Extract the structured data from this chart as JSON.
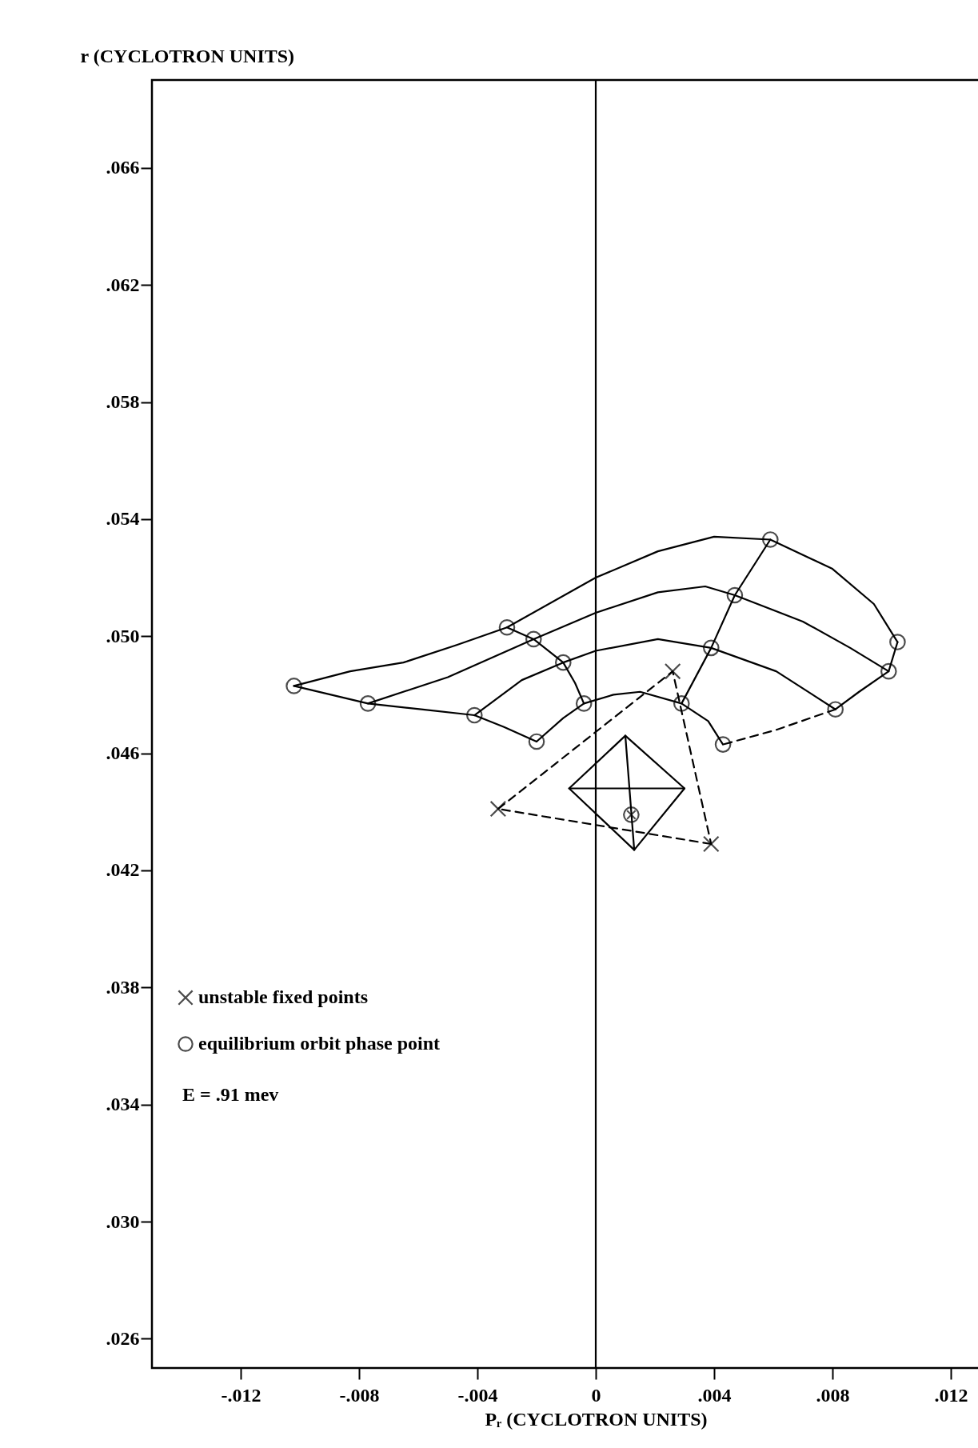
{
  "chart_data": {
    "type": "line",
    "xlabel": "Pᵣ (CYCLOTRON UNITS)",
    "ylabel": "r (CYCLOTRON UNITS)",
    "xlim": [
      -0.015,
      0.015
    ],
    "ylim": [
      0.025,
      0.069
    ],
    "xticks": [
      {
        "value": -0.012,
        "label": "-.012"
      },
      {
        "value": -0.008,
        "label": "-.008"
      },
      {
        "value": -0.004,
        "label": "-.004"
      },
      0,
      {
        "value": 0.004,
        "label": ".004"
      },
      {
        "value": 0.008,
        "label": ".008"
      },
      {
        "value": 0.012,
        "label": ".012"
      }
    ],
    "yticks": [
      {
        "value": 0.026,
        "label": ".026"
      },
      {
        "value": 0.03,
        "label": ".030"
      },
      {
        "value": 0.034,
        "label": ".034"
      },
      {
        "value": 0.038,
        "label": ".038"
      },
      {
        "value": 0.042,
        "label": ".042"
      },
      {
        "value": 0.046,
        "label": ".046"
      },
      {
        "value": 0.05,
        "label": ".050"
      },
      {
        "value": 0.054,
        "label": ".054"
      },
      {
        "value": 0.058,
        "label": ".058"
      },
      {
        "value": 0.062,
        "label": ".062"
      },
      {
        "value": 0.066,
        "label": ".066"
      }
    ],
    "grid": false,
    "legend": "bottom left",
    "annotations": [
      "E = .91 mev"
    ],
    "ref_lines": [
      {
        "axis": "x",
        "value": 0,
        "color": "#000000"
      }
    ],
    "series": [
      {
        "color": "#000000",
        "marker": "none",
        "line_style": "solid",
        "x": [
          -0.0102,
          -0.0083,
          -0.0065,
          -0.0047,
          -0.003,
          0,
          0.0021,
          0.004,
          0.0059,
          0.008,
          0.0094,
          0.0102
        ],
        "values": [
          0.0483,
          0.0488,
          0.0491,
          0.0497,
          0.0503,
          0.052,
          0.0529,
          0.0534,
          0.0533,
          0.0523,
          0.0511,
          0.0498
        ]
      },
      {
        "color": "#000000",
        "marker": "none",
        "line_style": "solid",
        "x": [
          -0.0077,
          -0.005,
          -0.0021,
          0,
          0.0021,
          0.0037,
          0.0047,
          0.007,
          0.0086,
          0.0099
        ],
        "values": [
          0.0477,
          0.0486,
          0.0499,
          0.0508,
          0.0515,
          0.0517,
          0.0514,
          0.0505,
          0.0496,
          0.0488
        ]
      },
      {
        "color": "#000000",
        "marker": "none",
        "line_style": "solid",
        "x": [
          -0.0041,
          -0.0025,
          -0.0011,
          0,
          0.0021,
          0.0039,
          0.0061,
          0.0081
        ],
        "values": [
          0.0473,
          0.0485,
          0.0491,
          0.0495,
          0.0499,
          0.0496,
          0.0488,
          0.0475
        ]
      },
      {
        "color": "#000000",
        "marker": "none",
        "line_style": "solid",
        "x": [
          -0.002,
          -0.0011,
          -0.0004,
          0.0006,
          0.0015,
          0.0029,
          0.0038,
          0.0043
        ],
        "values": [
          0.0464,
          0.0472,
          0.0477,
          0.048,
          0.0481,
          0.0477,
          0.0471,
          0.0463
        ]
      },
      {
        "color": "#000000",
        "marker": "none",
        "line_style": "solid",
        "x": [
          -0.0102,
          -0.0077,
          -0.0059,
          -0.0041,
          -0.0031,
          -0.002
        ],
        "values": [
          0.0483,
          0.0477,
          0.0475,
          0.0473,
          0.0469,
          0.0464
        ]
      },
      {
        "color": "#000000",
        "marker": "none",
        "line_style": "solid",
        "x": [
          -0.003,
          -0.0021,
          -0.0011,
          -0.0007,
          -0.0004
        ],
        "values": [
          0.0503,
          0.0499,
          0.0491,
          0.0484,
          0.0477
        ]
      },
      {
        "color": "#000000",
        "marker": "none",
        "line_style": "solid",
        "x": [
          0.0059,
          0.0047,
          0.0039,
          0.0029
        ],
        "values": [
          0.0533,
          0.0514,
          0.0496,
          0.0477
        ]
      },
      {
        "color": "#000000",
        "marker": "none",
        "line_style": "solid",
        "x": [
          0.0102,
          0.0099,
          0.0089,
          0.0081
        ],
        "values": [
          0.0498,
          0.0488,
          0.0481,
          0.0475
        ]
      },
      {
        "color": "#000000",
        "marker": "none",
        "line_style": "dashed",
        "x": [
          0.0081,
          0.0061,
          0.0043
        ],
        "values": [
          0.0475,
          0.0468,
          0.0463
        ]
      },
      {
        "color": "#000000",
        "marker": "none",
        "line_style": "dashed",
        "x": [
          -0.0033,
          0.0026,
          0.0039
        ],
        "values": [
          0.0441,
          0.0488,
          0.0429
        ]
      },
      {
        "color": "#000000",
        "marker": "none",
        "line_style": "dashed",
        "x": [
          0.0039,
          -0.0033
        ],
        "values": [
          0.0429,
          0.0441
        ]
      },
      {
        "color": "#000000",
        "marker": "none",
        "line_style": "solid",
        "x": [
          0.001,
          0.003,
          0.0013
        ],
        "values": [
          0.0466,
          0.0448,
          0.0427
        ]
      },
      {
        "color": "#000000",
        "marker": "none",
        "line_style": "solid",
        "x": [
          0.0013,
          -0.0009,
          0.001
        ],
        "values": [
          0.0427,
          0.0448,
          0.0466
        ]
      },
      {
        "color": "#000000",
        "marker": "none",
        "line_style": "solid",
        "x": [
          -0.0009,
          0.003
        ],
        "values": [
          0.0448,
          0.0448
        ]
      },
      {
        "color": "#000000",
        "marker": "none",
        "line_style": "solid",
        "x": [
          0.001,
          0.0013
        ],
        "values": [
          0.0466,
          0.0427
        ]
      },
      {
        "type": "scatter",
        "color": "#000000",
        "marker": "circle",
        "x": [
          -0.0102,
          -0.0077,
          -0.0041,
          -0.002,
          -0.003,
          -0.0021,
          -0.0011,
          -0.0004,
          0.0059,
          0.0047,
          0.0039,
          0.0029,
          0.0043,
          0.0102,
          0.0099,
          0.0081
        ],
        "values": [
          0.0483,
          0.0477,
          0.0473,
          0.0464,
          0.0503,
          0.0499,
          0.0491,
          0.0477,
          0.0533,
          0.0514,
          0.0496,
          0.0477,
          0.0463,
          0.0498,
          0.0488,
          0.0475
        ]
      },
      {
        "type": "scatter",
        "name": "unstable fixed points",
        "color": "#000000",
        "marker": "cross",
        "x": [
          0.0026,
          -0.0033,
          0.0039
        ],
        "values": [
          0.0488,
          0.0441,
          0.0429
        ]
      },
      {
        "type": "scatter",
        "name": "equilibrium orbit phase point",
        "color": "#000000",
        "marker": "circle",
        "x": [
          0.0012
        ],
        "values": [
          0.0439
        ]
      }
    ]
  }
}
